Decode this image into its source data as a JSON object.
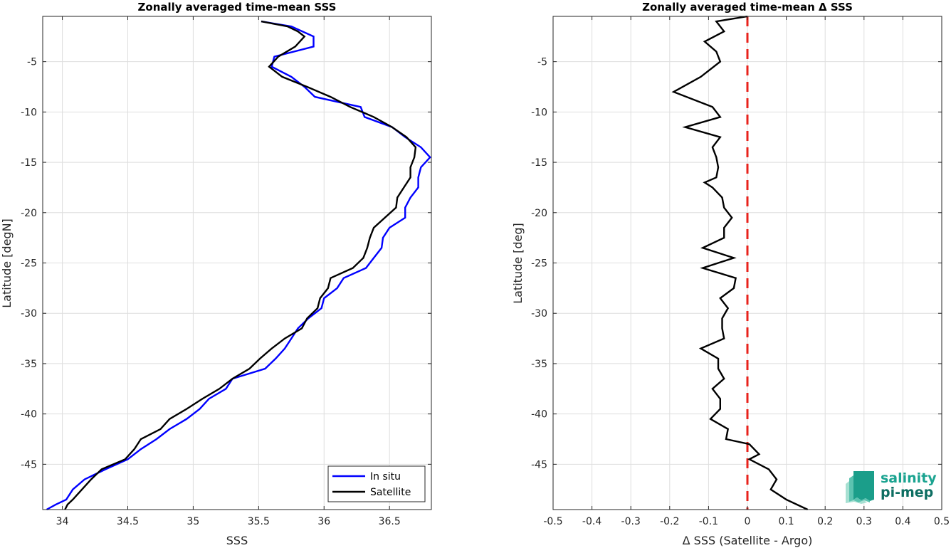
{
  "chart_data": [
    {
      "type": "line",
      "title": "Zonally averaged time-mean SSS",
      "xlabel": "SSS",
      "ylabel": "Latitude [degN]",
      "xlim": [
        33.85,
        36.82
      ],
      "ylim": [
        -49.5,
        -0.5
      ],
      "xticks": [
        34,
        34.5,
        35,
        35.5,
        36,
        36.5
      ],
      "yticks": [
        -5,
        -10,
        -15,
        -20,
        -25,
        -30,
        -35,
        -40,
        -45
      ],
      "grid": true,
      "legend_position": "bottom-right",
      "series": [
        {
          "name": "In situ",
          "color": "#0000ff",
          "x": [
            35.52,
            35.75,
            35.92,
            35.92,
            35.62,
            35.6,
            35.75,
            35.85,
            35.93,
            36.28,
            36.31,
            36.52,
            36.62,
            36.74,
            36.81,
            36.74,
            36.72,
            36.72,
            36.66,
            36.62,
            36.62,
            36.5,
            36.45,
            36.44,
            36.38,
            36.32,
            36.15,
            36.1,
            36.0,
            35.98,
            35.88,
            35.8,
            35.75,
            35.7,
            35.63,
            35.55,
            35.3,
            35.25,
            35.12,
            35.05,
            34.95,
            34.82,
            34.72,
            34.6,
            34.5,
            34.33,
            34.17,
            34.08,
            34.03,
            33.95,
            33.88
          ],
          "y": [
            -1.0,
            -1.5,
            -2.5,
            -3.5,
            -4.5,
            -5.5,
            -6.5,
            -7.5,
            -8.5,
            -9.5,
            -10.5,
            -11.5,
            -12.5,
            -13.5,
            -14.5,
            -15.5,
            -16.5,
            -17.5,
            -18.5,
            -19.5,
            -20.5,
            -21.5,
            -22.5,
            -23.5,
            -24.5,
            -25.5,
            -26.5,
            -27.5,
            -28.5,
            -29.5,
            -30.5,
            -31.5,
            -32.5,
            -33.5,
            -34.5,
            -35.5,
            -36.5,
            -37.5,
            -38.5,
            -39.5,
            -40.5,
            -41.5,
            -42.5,
            -43.5,
            -44.5,
            -45.5,
            -46.5,
            -47.5,
            -48.5,
            -49.0,
            -49.5
          ]
        },
        {
          "name": "Satellite",
          "color": "#000000",
          "x": [
            35.52,
            35.72,
            35.8,
            35.85,
            35.78,
            35.65,
            35.58,
            35.68,
            35.87,
            36.05,
            36.2,
            36.38,
            36.52,
            36.63,
            36.7,
            36.69,
            36.66,
            36.66,
            36.61,
            36.56,
            36.55,
            36.38,
            36.35,
            36.33,
            36.3,
            36.22,
            36.05,
            36.03,
            35.97,
            35.95,
            35.87,
            35.83,
            35.7,
            35.6,
            35.51,
            35.43,
            35.3,
            35.2,
            35.07,
            34.95,
            34.82,
            34.75,
            34.6,
            34.55,
            34.48,
            34.3,
            34.22,
            34.15,
            34.08,
            34.04,
            34.02
          ],
          "y": [
            -1.0,
            -1.5,
            -2.0,
            -2.5,
            -3.5,
            -4.5,
            -5.5,
            -6.5,
            -7.5,
            -8.5,
            -9.5,
            -10.5,
            -11.5,
            -12.5,
            -13.5,
            -14.5,
            -15.5,
            -16.5,
            -17.5,
            -18.5,
            -19.5,
            -21.5,
            -22.5,
            -23.5,
            -24.5,
            -25.5,
            -26.5,
            -27.5,
            -28.5,
            -29.5,
            -30.5,
            -31.5,
            -32.5,
            -33.5,
            -34.5,
            -35.5,
            -36.5,
            -37.5,
            -38.5,
            -39.5,
            -40.5,
            -41.5,
            -42.5,
            -43.5,
            -44.5,
            -45.5,
            -46.5,
            -47.5,
            -48.5,
            -49.0,
            -49.5
          ]
        }
      ]
    },
    {
      "type": "line",
      "title": "Zonally averaged time-mean Δ SSS",
      "xlabel": "Δ SSS (Satellite - Argo)",
      "ylabel": "Latitude [deg]",
      "xlim": [
        -0.5,
        0.5
      ],
      "ylim": [
        -49.5,
        -0.5
      ],
      "xticks": [
        -0.5,
        -0.4,
        -0.3,
        -0.2,
        -0.1,
        0,
        0.1,
        0.2,
        0.3,
        0.4,
        0.5
      ],
      "yticks": [
        -5,
        -10,
        -15,
        -20,
        -25,
        -30,
        -35,
        -40,
        -45
      ],
      "grid": true,
      "series": [
        {
          "color": "#000000",
          "x": [
            0.0,
            -0.08,
            -0.06,
            -0.11,
            -0.08,
            -0.07,
            -0.12,
            -0.19,
            -0.09,
            -0.07,
            -0.16,
            -0.07,
            -0.09,
            -0.08,
            -0.075,
            -0.08,
            -0.11,
            -0.09,
            -0.065,
            -0.06,
            -0.04,
            -0.06,
            -0.06,
            -0.115,
            -0.035,
            -0.115,
            -0.03,
            -0.035,
            -0.07,
            -0.05,
            -0.065,
            -0.065,
            -0.06,
            -0.12,
            -0.075,
            -0.075,
            -0.06,
            -0.09,
            -0.07,
            -0.07,
            -0.095,
            -0.05,
            -0.055,
            0.005,
            0.03,
            0.005,
            0.055,
            0.075,
            0.06,
            0.1,
            0.155
          ],
          "y": [
            -0.5,
            -1.0,
            -2.0,
            -3.0,
            -4.0,
            -5.0,
            -6.5,
            -8.0,
            -9.5,
            -10.5,
            -11.5,
            -12.5,
            -13.5,
            -14.5,
            -15.5,
            -16.5,
            -17.0,
            -17.5,
            -18.5,
            -19.5,
            -20.5,
            -21.5,
            -22.5,
            -23.5,
            -24.5,
            -25.5,
            -26.5,
            -27.5,
            -28.5,
            -29.5,
            -30.5,
            -31.5,
            -32.5,
            -33.5,
            -34.5,
            -35.5,
            -36.5,
            -37.5,
            -38.5,
            -39.5,
            -40.5,
            -41.5,
            -42.5,
            -43.0,
            -44.0,
            -44.5,
            -45.5,
            -46.5,
            -47.5,
            -48.5,
            -49.5
          ]
        }
      ],
      "reference_line": {
        "x": 0,
        "color": "#e8221b",
        "style": "dashed"
      }
    }
  ],
  "logo": {
    "line1": "salinity",
    "line2": "pi-mep"
  }
}
